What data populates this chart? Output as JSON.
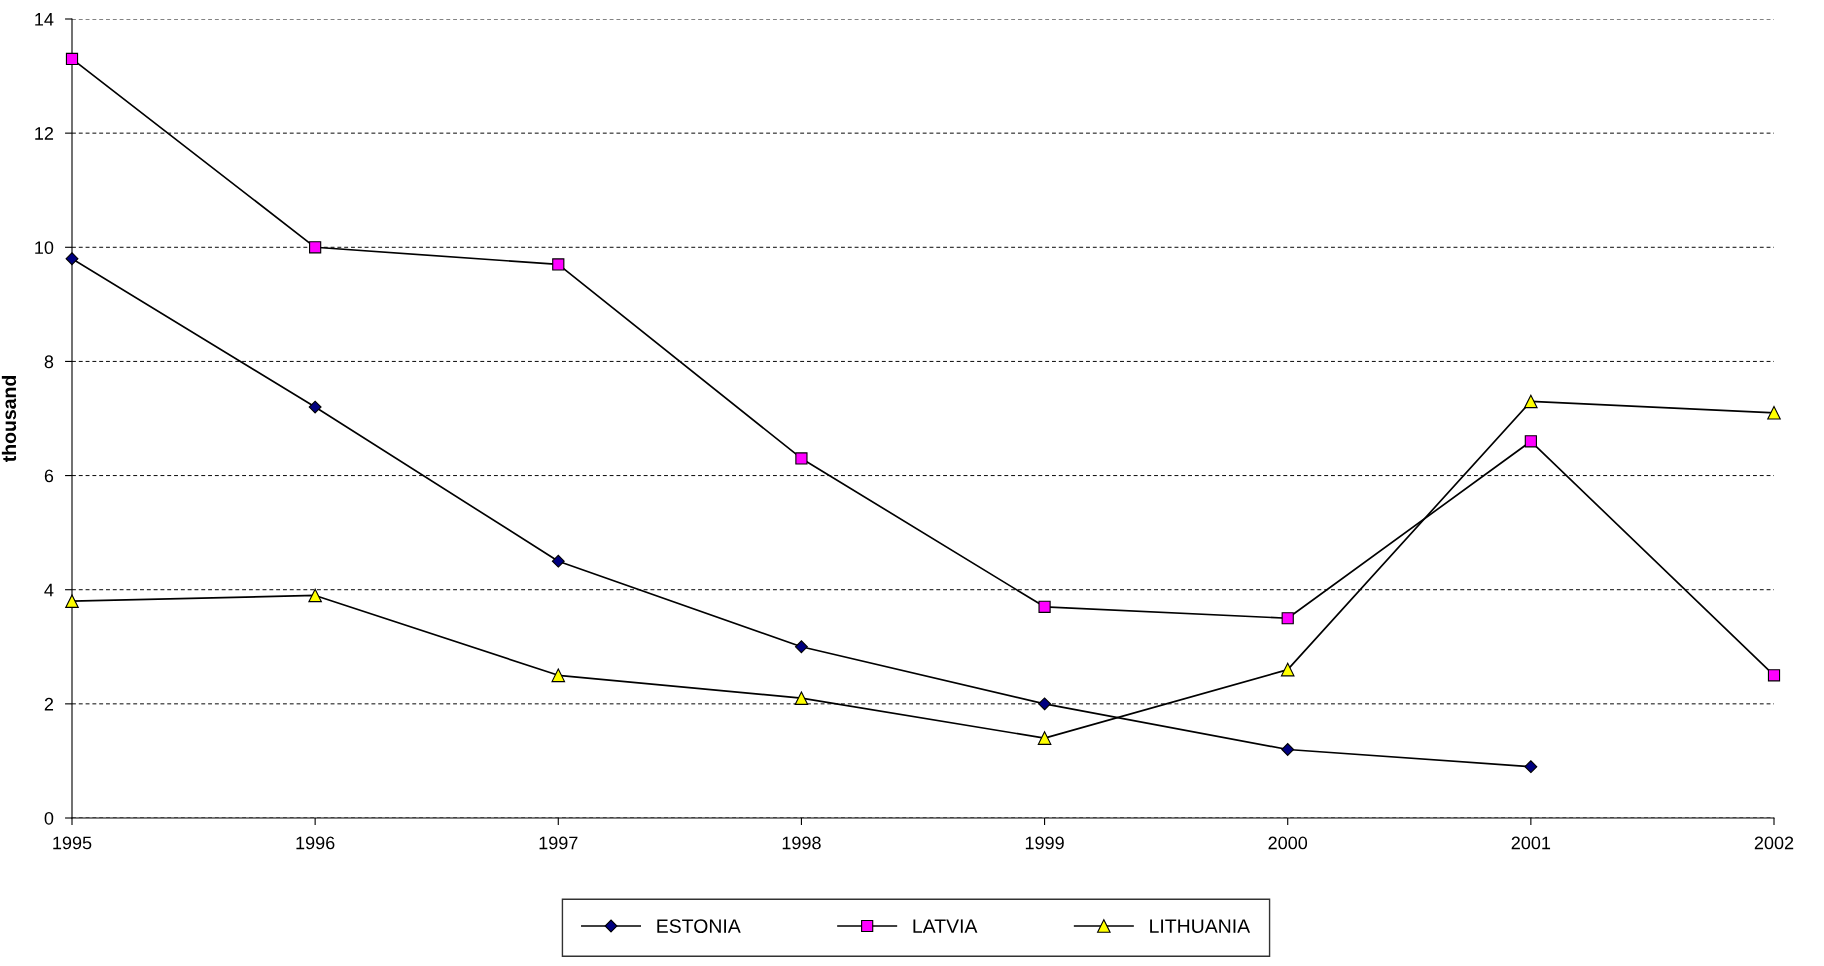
{
  "chart_data": {
    "type": "line",
    "ylabel": "thousand",
    "x": [
      1995,
      1996,
      1997,
      1998,
      1999,
      2000,
      2001,
      2002
    ],
    "xlim": [
      1995,
      2002
    ],
    "xticks": [
      1995,
      1996,
      1997,
      1998,
      1999,
      2000,
      2001,
      2002
    ],
    "ylim": [
      0,
      14
    ],
    "yticks": [
      0,
      2,
      4,
      6,
      8,
      10,
      12,
      14
    ],
    "grid": "y",
    "legend": "bottom",
    "line_style": "solid",
    "series": [
      {
        "name": "ESTONIA",
        "color": "#000080",
        "marker": "diamond",
        "values": [
          9.8,
          7.2,
          4.5,
          3.0,
          2.0,
          1.2,
          0.9,
          null
        ]
      },
      {
        "name": "LATVIA",
        "color": "#ff00ff",
        "marker": "square",
        "values": [
          13.3,
          10.0,
          9.7,
          6.3,
          3.7,
          3.5,
          6.6,
          2.5
        ]
      },
      {
        "name": "LITHUANIA",
        "color": "#ffff00",
        "marker": "triangle",
        "values": [
          3.8,
          3.9,
          2.5,
          2.1,
          1.4,
          2.6,
          7.3,
          7.1
        ]
      }
    ]
  }
}
